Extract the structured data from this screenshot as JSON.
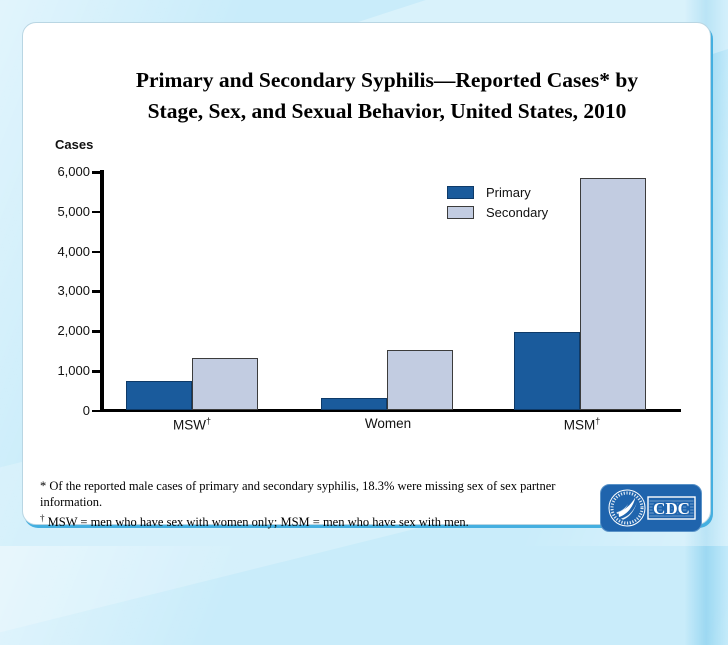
{
  "title": {
    "line1": "Primary and Secondary Syphilis—Reported Cases* by",
    "line2": "Stage, Sex, and Sexual Behavior, United States, 2010"
  },
  "y_axis": {
    "label": "Cases",
    "ticks": [
      "6,000",
      "5,000",
      "4,000",
      "3,000",
      "2,000",
      "1,000",
      "0"
    ]
  },
  "x_axis": {
    "groups": [
      {
        "label": "MSW",
        "sup": "†"
      },
      {
        "label": "Women",
        "sup": ""
      },
      {
        "label": "MSM",
        "sup": "†"
      }
    ]
  },
  "legend": [
    {
      "label": "Primary"
    },
    {
      "label": "Secondary"
    }
  ],
  "colors": {
    "primary_bar": "#1a5b9c",
    "secondary_bar": "#c2cce1",
    "background": "#c9ecfa",
    "card_edge_blue": "#44afe0",
    "logo_blue": "#1f64ad"
  },
  "chart_data": {
    "type": "bar",
    "title": "Primary and Secondary Syphilis—Reported Cases* by Stage, Sex, and Sexual Behavior, United States, 2010",
    "categories": [
      "MSW†",
      "Women",
      "MSM†"
    ],
    "series": [
      {
        "name": "Primary",
        "values": [
          720,
          290,
          1960
        ]
      },
      {
        "name": "Secondary",
        "values": [
          1310,
          1500,
          5830
        ]
      }
    ],
    "xlabel": "",
    "ylabel": "Cases",
    "ylim": [
      0,
      6000
    ],
    "ytick_step": 1000,
    "grid": false,
    "legend_position": "upper-right-inside"
  },
  "footnotes": {
    "line1_marker": "*",
    "line1": "Of the reported male cases of primary and secondary syphilis, 18.3% were missing sex of sex partner information.",
    "line2_marker": "†",
    "line2": "MSW = men who have sex with women only; MSM = men who have sex with men."
  },
  "logo": {
    "text": "CDC"
  }
}
